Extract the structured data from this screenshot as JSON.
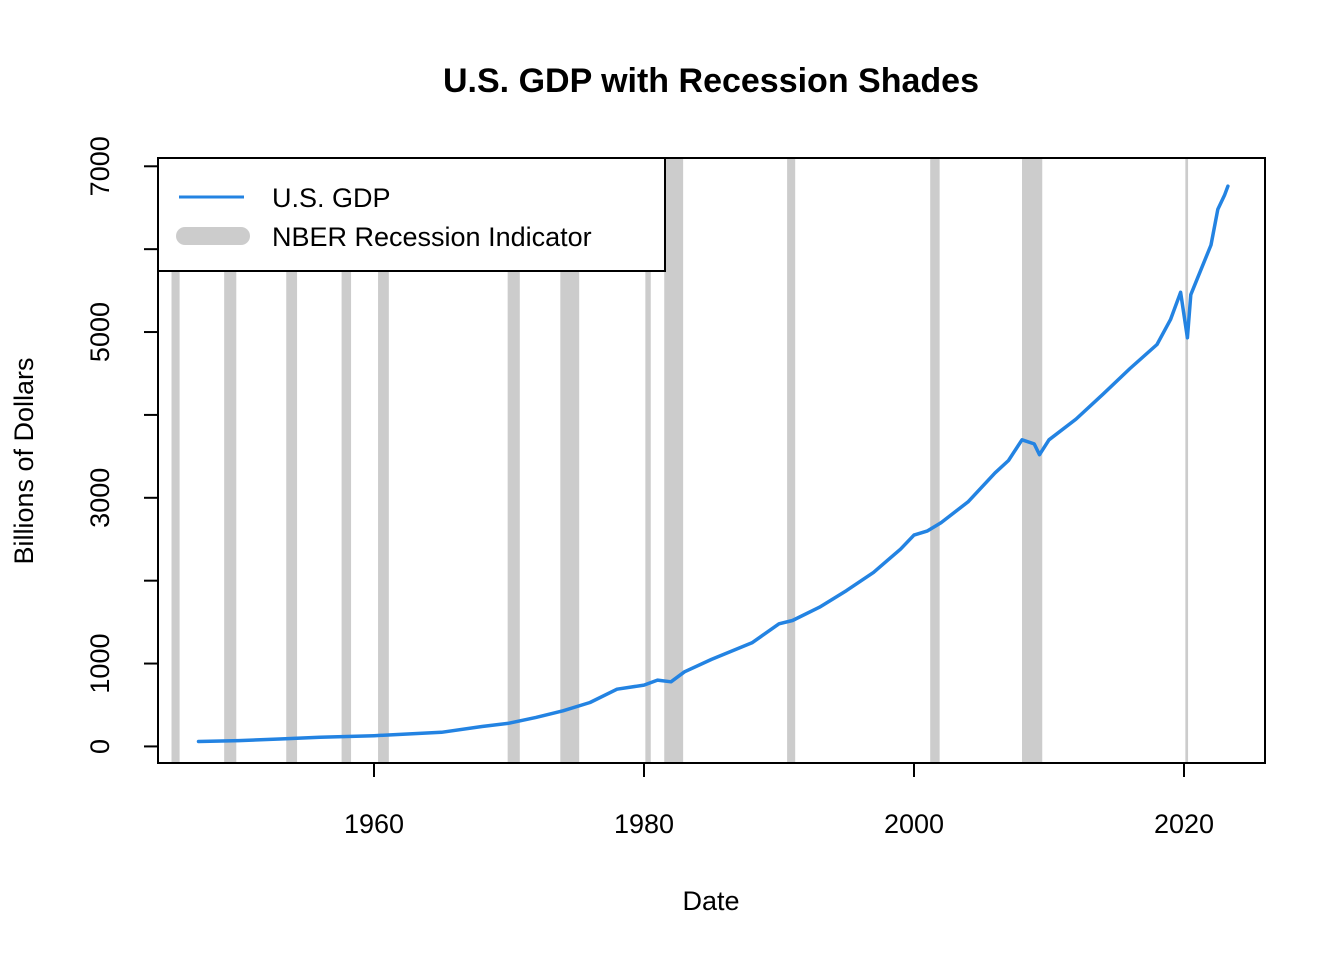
{
  "chart_data": {
    "type": "line",
    "title": "U.S. GDP with Recession Shades",
    "xlabel": "Date",
    "ylabel": "Billions of Dollars",
    "xlim": [
      1944,
      2026
    ],
    "ylim": [
      -200,
      7100
    ],
    "x_ticks": [
      1960,
      1980,
      2000,
      2020
    ],
    "y_ticks": [
      0,
      1000,
      2000,
      3000,
      4000,
      5000,
      6000,
      7000
    ],
    "y_tick_labels": [
      "0",
      "1000",
      "",
      "3000",
      "",
      "5000",
      "",
      "7000"
    ],
    "grid": false,
    "legend_position": "top-left",
    "series": [
      {
        "name": "U.S. GDP",
        "color": "#2383E2",
        "x": [
          1947,
          1950,
          1953,
          1956,
          1960,
          1965,
          1968,
          1970,
          1972,
          1974,
          1976,
          1978,
          1980,
          1981,
          1982,
          1983,
          1985,
          1988,
          1990,
          1991,
          1993,
          1995,
          1997,
          1999,
          2000,
          2001,
          2002,
          2004,
          2006,
          2007,
          2008,
          2008.9,
          2009.3,
          2010,
          2012,
          2014,
          2016,
          2018,
          2019,
          2019.75,
          2020.25,
          2020.5,
          2021,
          2022,
          2022.5,
          2023,
          2023.25
        ],
        "y": [
          60,
          70,
          90,
          110,
          130,
          170,
          240,
          280,
          350,
          430,
          530,
          690,
          740,
          800,
          780,
          900,
          1050,
          1250,
          1480,
          1520,
          1680,
          1880,
          2100,
          2380,
          2550,
          2600,
          2700,
          2950,
          3300,
          3450,
          3700,
          3650,
          3520,
          3700,
          3950,
          4250,
          4560,
          4850,
          5150,
          5480,
          4930,
          5450,
          5650,
          6050,
          6480,
          6650,
          6760
        ]
      }
    ],
    "recessions": {
      "name": "NBER Recession Indicator",
      "color": "#CCCCCC",
      "periods": [
        [
          1945.0,
          1945.6
        ],
        [
          1948.9,
          1949.8
        ],
        [
          1953.5,
          1954.3
        ],
        [
          1957.6,
          1958.3
        ],
        [
          1960.3,
          1961.1
        ],
        [
          1969.9,
          1970.8
        ],
        [
          1973.8,
          1975.2
        ],
        [
          1980.1,
          1980.5
        ],
        [
          1981.5,
          1982.9
        ],
        [
          1990.6,
          1991.2
        ],
        [
          2001.2,
          2001.9
        ],
        [
          2008.0,
          2009.5
        ],
        [
          2020.1,
          2020.3
        ]
      ]
    }
  }
}
